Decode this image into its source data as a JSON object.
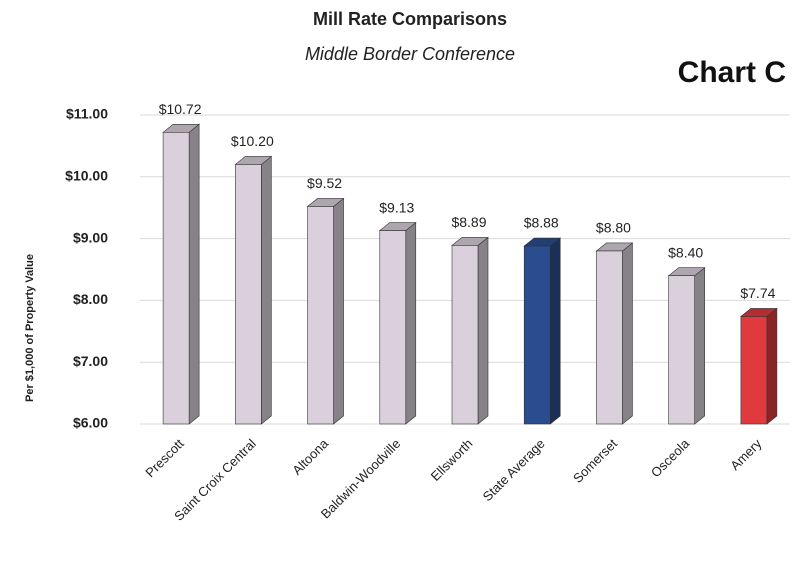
{
  "chart_data": {
    "type": "bar3d",
    "title": "Mill Rate Comparisons",
    "subtitle": "Middle Border Conference",
    "annotation": "Chart C",
    "ylabel": "Per $1,000 of Property Value",
    "categories": [
      "Prescott",
      "Saint Croix Central",
      "Altoona",
      "Baldwin-Woodville",
      "Ellsworth",
      "State Average",
      "Somerset",
      "Osceola",
      "Amery"
    ],
    "values": [
      10.72,
      10.2,
      9.52,
      9.13,
      8.89,
      8.88,
      8.8,
      8.4,
      7.74
    ],
    "value_labels": [
      "$10.72",
      "$10.20",
      "$9.52",
      "$9.13",
      "$8.89",
      "$8.88",
      "$8.80",
      "$8.40",
      "$7.74"
    ],
    "colors": [
      "#d9d0db",
      "#d9d0db",
      "#d9d0db",
      "#d9d0db",
      "#d9d0db",
      "#2a4d8f",
      "#d9d0db",
      "#d9d0db",
      "#e03a3e"
    ],
    "ylim": [
      6,
      11
    ],
    "yticks": [
      {
        "value": 6,
        "label": "$6.00"
      },
      {
        "value": 7,
        "label": "$7.00"
      },
      {
        "value": 8,
        "label": "$8.00"
      },
      {
        "value": 9,
        "label": "$9.00"
      },
      {
        "value": 10,
        "label": "$10.00"
      },
      {
        "value": 11,
        "label": "$11.00"
      }
    ],
    "grid": true
  }
}
